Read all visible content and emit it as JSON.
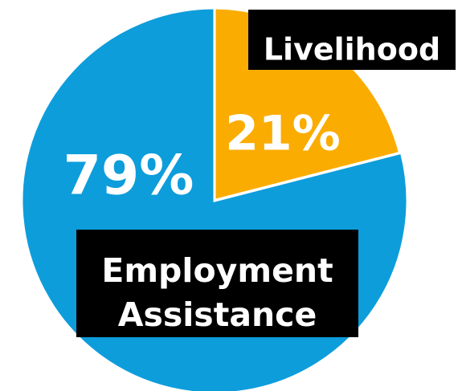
{
  "chart_data": {
    "type": "pie",
    "slices": [
      {
        "name": "Employment Assistance",
        "label_lines": [
          "Employment",
          "Assistance"
        ],
        "value": 79,
        "value_label": "79%",
        "color": "#0d9ddb"
      },
      {
        "name": "Livelihood",
        "label_lines": [
          "Livelihood"
        ],
        "value": 21,
        "value_label": "21%",
        "color": "#fbac00"
      }
    ],
    "label_box_color": "#000000",
    "label_text_color": "#ffffff",
    "value_label_color": "#ffffff",
    "highlighted_slice": "Livelihood"
  }
}
